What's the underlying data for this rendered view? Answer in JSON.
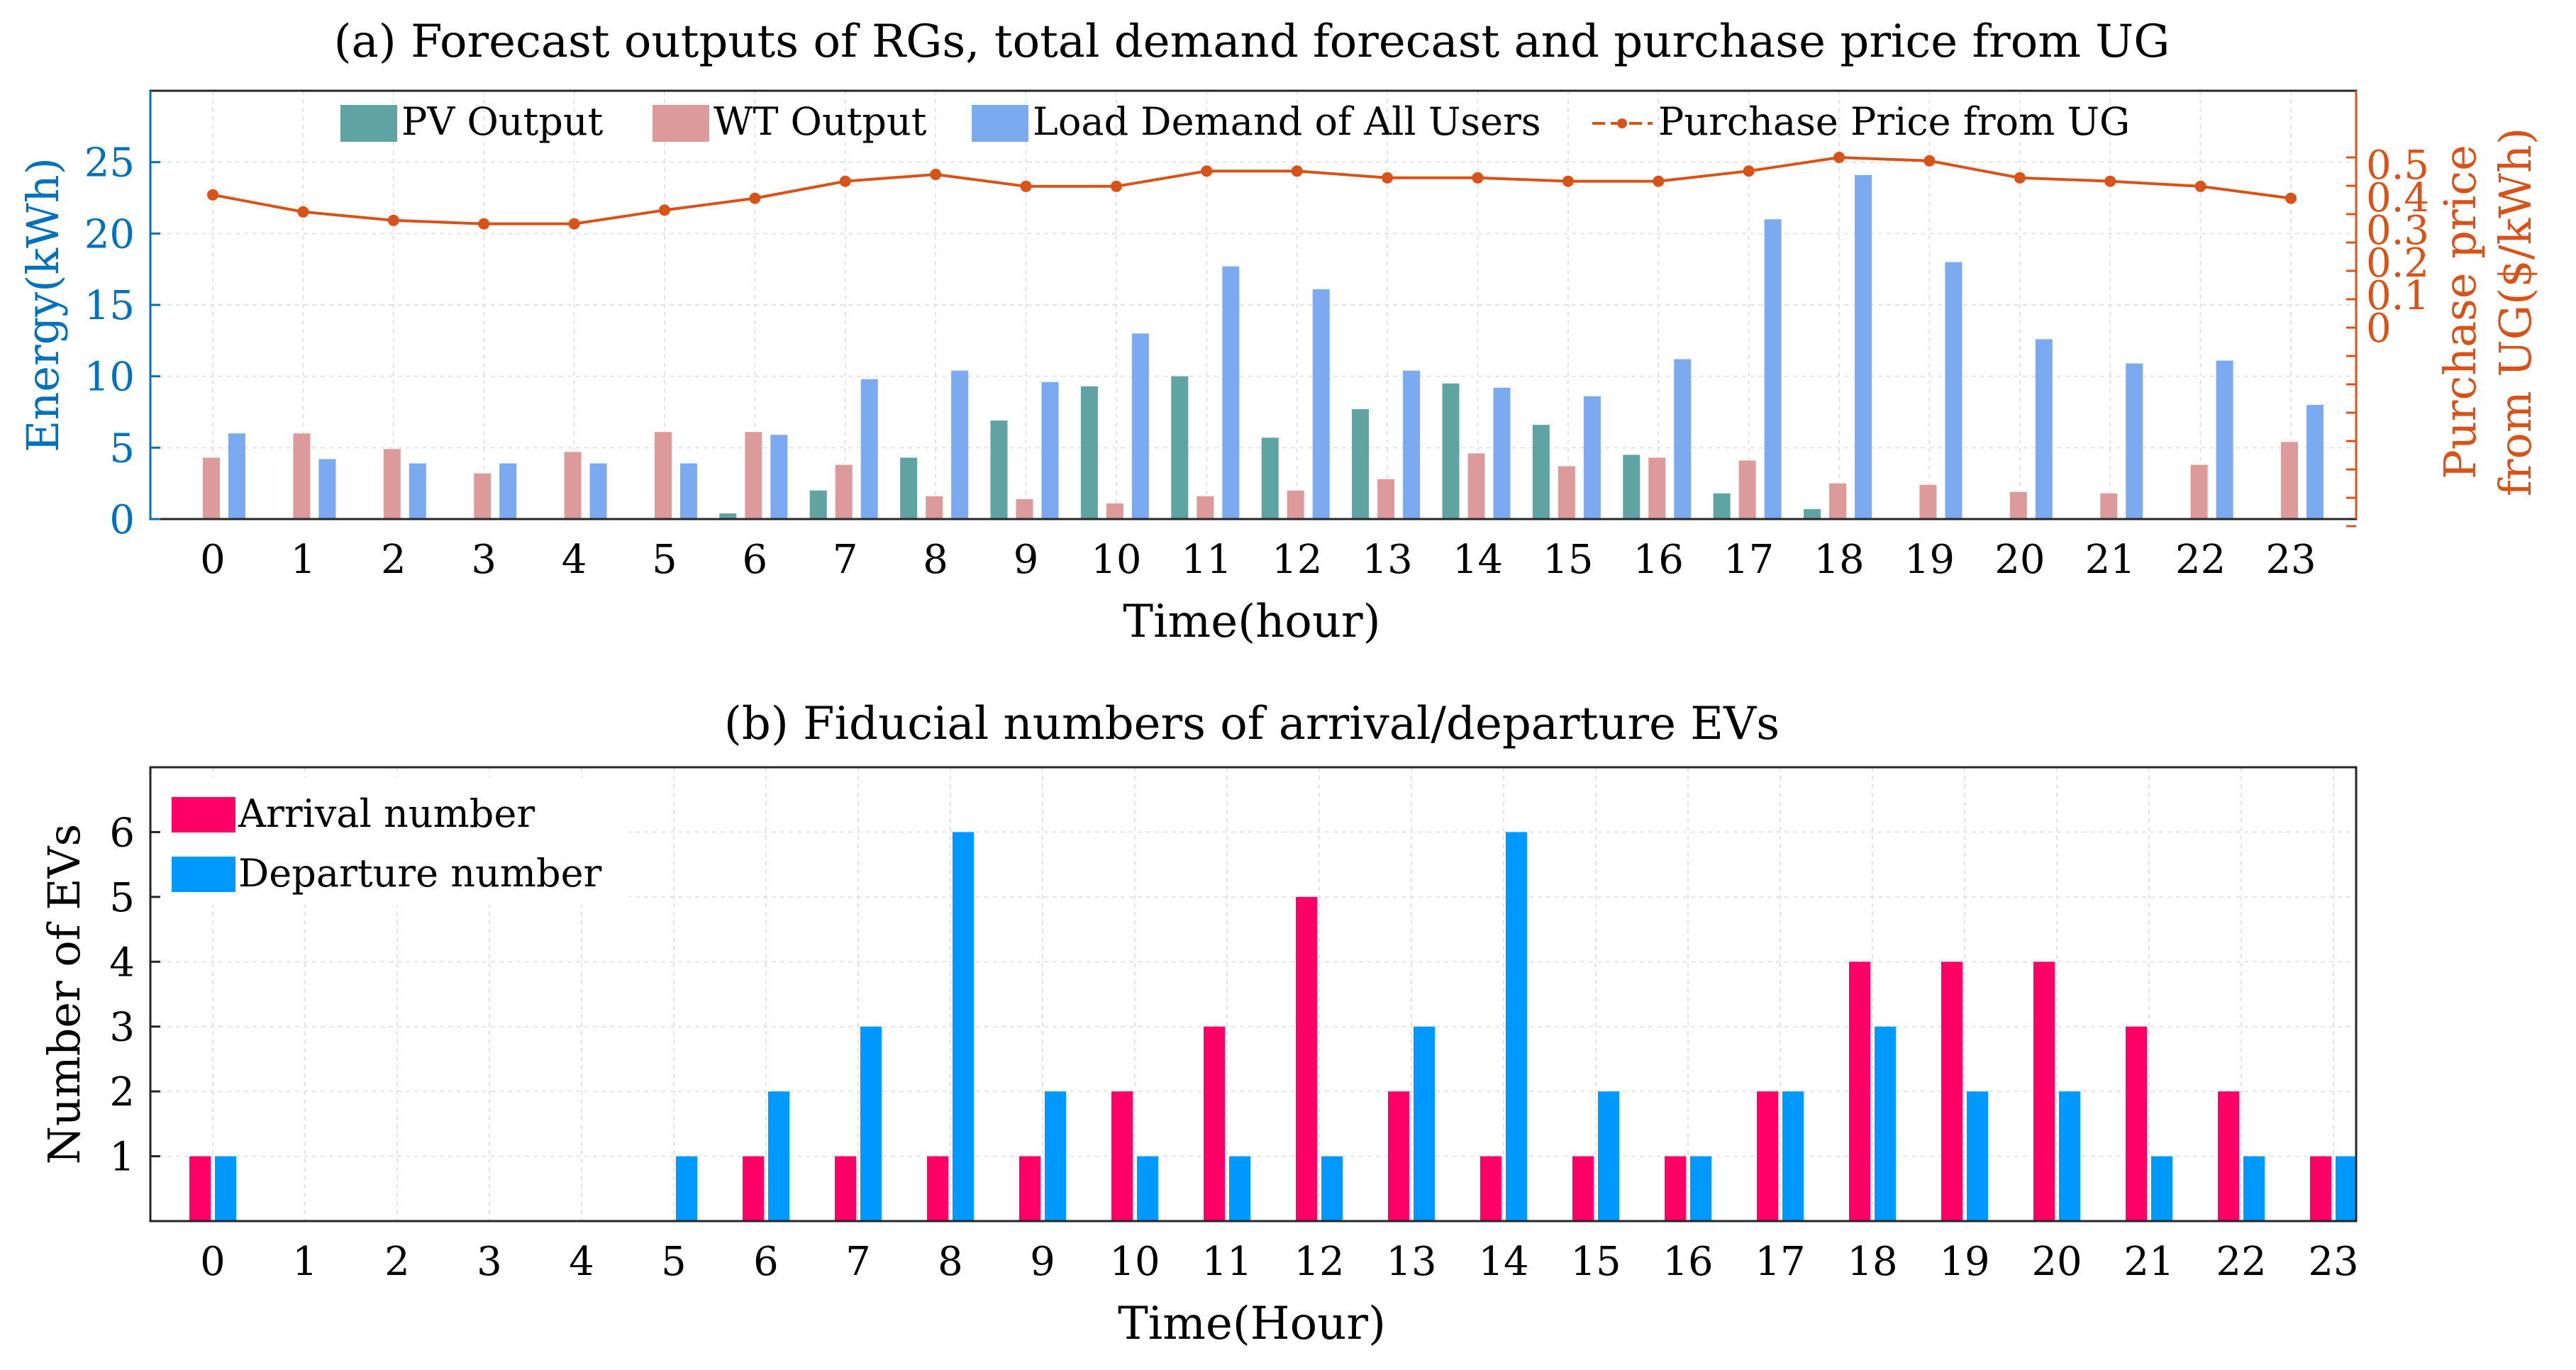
{
  "chart_data": [
    {
      "type": "bar",
      "title": "(a) Forecast outputs of RGs, total demand forecast and purchase price from UG",
      "xlabel": "Time(hour)",
      "ylabel": "Energy(kWh)",
      "y2label_line1": "Purchase price",
      "y2label_line2": "from UG($/kWh)",
      "categories": [
        "0",
        "1",
        "2",
        "3",
        "4",
        "5",
        "6",
        "7",
        "8",
        "9",
        "10",
        "11",
        "12",
        "13",
        "14",
        "15",
        "16",
        "17",
        "18",
        "19",
        "20",
        "21",
        "22",
        "23"
      ],
      "ylim": [
        0,
        30
      ],
      "yticks": [
        "0",
        "5",
        "10",
        "15",
        "20",
        "25"
      ],
      "y2ticks": [
        "0",
        "0.1",
        "0.2",
        "0.3",
        "0.4",
        "0.5"
      ],
      "grid": true,
      "legend_position": "top",
      "series": [
        {
          "name": "PV Output",
          "kind": "bar",
          "color": "#5fa3a3",
          "values": [
            0,
            0,
            0,
            0,
            0,
            0,
            0.4,
            2.0,
            4.3,
            6.9,
            9.3,
            10.0,
            5.7,
            7.7,
            9.5,
            6.6,
            4.5,
            1.8,
            0.7,
            0,
            0,
            0,
            0,
            0
          ]
        },
        {
          "name": "WT Output",
          "kind": "bar",
          "color": "#dd9a9a",
          "values": [
            4.3,
            6.0,
            4.9,
            3.2,
            4.7,
            6.1,
            6.1,
            3.8,
            1.6,
            1.4,
            1.1,
            1.6,
            2.0,
            2.8,
            4.6,
            3.7,
            4.3,
            4.1,
            2.5,
            2.4,
            1.9,
            1.8,
            3.8,
            5.4
          ]
        },
        {
          "name": "Load Demand of All Users",
          "kind": "bar",
          "color": "#7baaf0",
          "values": [
            6.0,
            4.2,
            3.9,
            3.9,
            3.9,
            3.9,
            5.9,
            9.8,
            10.4,
            9.6,
            13.0,
            17.7,
            16.1,
            10.4,
            9.2,
            8.6,
            11.2,
            21.0,
            24.1,
            18.0,
            12.6,
            10.9,
            11.1,
            8.0
          ]
        },
        {
          "name": "Purchase Price from UG",
          "kind": "line",
          "color": "#d95319",
          "values": [
            0.39,
            0.34,
            0.315,
            0.305,
            0.305,
            0.345,
            0.38,
            0.43,
            0.45,
            0.415,
            0.415,
            0.46,
            0.46,
            0.44,
            0.44,
            0.43,
            0.43,
            0.46,
            0.5,
            0.49,
            0.44,
            0.43,
            0.415,
            0.38
          ]
        }
      ]
    },
    {
      "type": "bar",
      "title": "(b) Fiducial numbers of arrival/departure EVs",
      "xlabel": "Time(Hour)",
      "ylabel": "Number of EVs",
      "categories": [
        "0",
        "1",
        "2",
        "3",
        "4",
        "5",
        "6",
        "7",
        "8",
        "9",
        "10",
        "11",
        "12",
        "13",
        "14",
        "15",
        "16",
        "17",
        "18",
        "19",
        "20",
        "21",
        "22",
        "23"
      ],
      "ylim": [
        0,
        7
      ],
      "yticks": [
        "1",
        "2",
        "3",
        "4",
        "5",
        "6"
      ],
      "grid": true,
      "legend_position": "top-left",
      "series": [
        {
          "name": "Arrival number",
          "color": "#ff0066",
          "values": [
            1,
            0,
            0,
            0,
            0,
            0,
            1,
            1,
            1,
            1,
            2,
            3,
            5,
            2,
            1,
            1,
            1,
            2,
            4,
            4,
            4,
            3,
            2,
            1
          ]
        },
        {
          "name": "Departure number",
          "color": "#0099ff",
          "values": [
            1,
            0,
            0,
            0,
            0,
            1,
            2,
            3,
            6,
            2,
            1,
            1,
            1,
            3,
            6,
            2,
            1,
            2,
            3,
            2,
            2,
            1,
            1,
            1
          ]
        }
      ]
    }
  ]
}
